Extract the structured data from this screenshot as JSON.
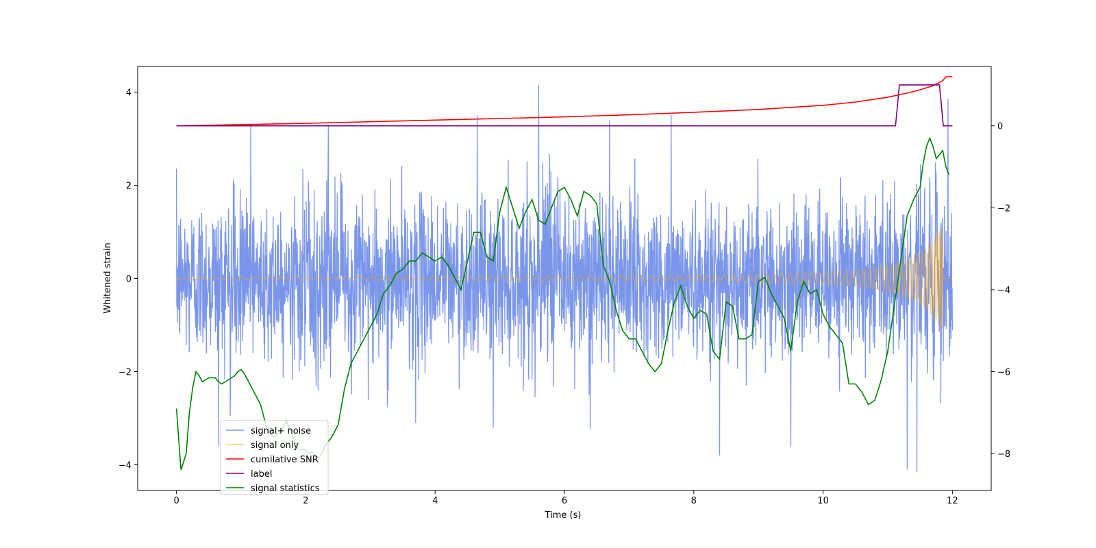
{
  "chart_data": {
    "type": "line",
    "title": "",
    "xlabel": "Time (s)",
    "ylabel": "Whitened strain",
    "y2label": "",
    "xlim": [
      -0.6,
      12.6
    ],
    "ylim": [
      -4.55,
      4.55
    ],
    "y2lim": [
      -8.9,
      1.45
    ],
    "xticks": [
      0,
      2,
      4,
      6,
      8,
      10,
      12
    ],
    "xtick_labels": [
      "0",
      "2",
      "4",
      "6",
      "8",
      "10",
      "12"
    ],
    "yticks": [
      -4,
      -2,
      0,
      2,
      4
    ],
    "ytick_labels": [
      "−4",
      "−2",
      "0",
      "2",
      "4"
    ],
    "y2ticks": [
      -8,
      -6,
      -4,
      -2,
      0
    ],
    "y2tick_labels": [
      "−8",
      "−6",
      "−4",
      "−2",
      "0"
    ],
    "grid": false,
    "legend_location": "lower-left",
    "series": [
      {
        "name": "signal+ noise",
        "axis": "left",
        "color": "#4169e1",
        "opacity": 0.7,
        "kind": "noise",
        "t_start": 0,
        "t_end": 12,
        "std": 0.85,
        "envelope": "chirp",
        "spikes": [
          {
            "x": 5.6,
            "y": 4.15
          },
          {
            "x": 4.65,
            "y": 3.5
          },
          {
            "x": 1.15,
            "y": 3.3
          },
          {
            "x": 2.35,
            "y": 3.3
          },
          {
            "x": 6.7,
            "y": 3.4
          },
          {
            "x": 7.65,
            "y": 3.5
          },
          {
            "x": 11.93,
            "y": 3.85
          },
          {
            "x": 11.3,
            "y": -4.1
          },
          {
            "x": 11.45,
            "y": -4.15
          },
          {
            "x": 8.4,
            "y": -3.8
          },
          {
            "x": 0.65,
            "y": -3.6
          },
          {
            "x": 4.9,
            "y": -3.2
          },
          {
            "x": 6.4,
            "y": -3.25
          },
          {
            "x": 9.5,
            "y": -3.6
          },
          {
            "x": 3.7,
            "y": -3.1
          }
        ]
      },
      {
        "name": "signal only",
        "axis": "left",
        "color": "#ffa500",
        "opacity": 0.5,
        "kind": "chirp",
        "t_start": 0,
        "t_end": 12,
        "merger_time": 11.85,
        "amplitude_at": [
          [
            0,
            0.03
          ],
          [
            6,
            0.05
          ],
          [
            9,
            0.09
          ],
          [
            10.5,
            0.17
          ],
          [
            11.2,
            0.35
          ],
          [
            11.6,
            0.65
          ],
          [
            11.82,
            1.1
          ]
        ]
      },
      {
        "name": "cumilative SNR",
        "axis": "right",
        "color": "#ff0000",
        "x": [
          0,
          1,
          2,
          3,
          4,
          5,
          6,
          7,
          8,
          9,
          9.5,
          10,
          10.5,
          11,
          11.3,
          11.5,
          11.7,
          11.85,
          11.9,
          12
        ],
        "y": [
          0,
          0.03,
          0.06,
          0.1,
          0.14,
          0.18,
          0.22,
          0.27,
          0.33,
          0.4,
          0.45,
          0.5,
          0.58,
          0.7,
          0.8,
          0.88,
          0.98,
          1.1,
          1.2,
          1.2
        ]
      },
      {
        "name": "label",
        "axis": "right",
        "color": "#800080",
        "x": [
          0,
          11.12,
          11.18,
          11.8,
          11.86,
          12
        ],
        "y": [
          0,
          0,
          1.0,
          1.0,
          0,
          0
        ]
      },
      {
        "name": "signal statistics",
        "axis": "right",
        "color": "#008000",
        "x": [
          0,
          0.07,
          0.15,
          0.2,
          0.25,
          0.3,
          0.35,
          0.4,
          0.5,
          0.6,
          0.65,
          0.7,
          0.8,
          0.9,
          0.95,
          1.0,
          1.05,
          1.1,
          1.2,
          1.3,
          1.4,
          1.5,
          1.6,
          1.7,
          1.8,
          1.9,
          2.0,
          2.05,
          2.1,
          2.15,
          2.2,
          2.25,
          2.3,
          2.4,
          2.5,
          2.6,
          2.7,
          2.8,
          2.9,
          3.0,
          3.1,
          3.2,
          3.3,
          3.4,
          3.5,
          3.6,
          3.7,
          3.8,
          3.9,
          4.0,
          4.1,
          4.2,
          4.3,
          4.4,
          4.5,
          4.6,
          4.7,
          4.8,
          4.9,
          5.0,
          5.1,
          5.2,
          5.3,
          5.4,
          5.5,
          5.6,
          5.7,
          5.8,
          5.9,
          6.0,
          6.1,
          6.2,
          6.3,
          6.4,
          6.5,
          6.6,
          6.7,
          6.8,
          6.9,
          7.0,
          7.1,
          7.2,
          7.3,
          7.4,
          7.5,
          7.6,
          7.7,
          7.8,
          7.9,
          8.0,
          8.1,
          8.2,
          8.3,
          8.4,
          8.5,
          8.6,
          8.7,
          8.8,
          8.9,
          9.0,
          9.1,
          9.2,
          9.3,
          9.4,
          9.5,
          9.6,
          9.7,
          9.8,
          9.9,
          10.0,
          10.1,
          10.2,
          10.3,
          10.4,
          10.5,
          10.6,
          10.7,
          10.8,
          10.9,
          11.0,
          11.1,
          11.2,
          11.3,
          11.4,
          11.5,
          11.55,
          11.6,
          11.65,
          11.7,
          11.75,
          11.8,
          11.85,
          11.9,
          11.95
        ],
        "y": [
          -6.9,
          -8.4,
          -8.0,
          -7.0,
          -6.4,
          -6.0,
          -6.1,
          -6.25,
          -6.15,
          -6.15,
          -6.25,
          -6.3,
          -6.2,
          -6.1,
          -6.0,
          -5.95,
          -6.05,
          -6.2,
          -6.5,
          -6.8,
          -7.4,
          -7.6,
          -7.5,
          -7.2,
          -7.6,
          -7.9,
          -7.9,
          -8.0,
          -7.95,
          -8.05,
          -8.1,
          -8.0,
          -7.8,
          -7.6,
          -7.3,
          -6.4,
          -5.8,
          -5.5,
          -5.2,
          -4.9,
          -4.6,
          -4.1,
          -3.9,
          -3.6,
          -3.5,
          -3.3,
          -3.3,
          -3.1,
          -3.2,
          -3.3,
          -3.2,
          -3.4,
          -3.7,
          -4.0,
          -3.3,
          -2.6,
          -2.6,
          -3.2,
          -3.3,
          -2.1,
          -1.5,
          -2.0,
          -2.5,
          -2.1,
          -1.8,
          -2.3,
          -2.4,
          -2.0,
          -1.6,
          -1.5,
          -1.8,
          -2.2,
          -1.6,
          -1.7,
          -1.9,
          -3.4,
          -3.8,
          -4.5,
          -5.0,
          -5.2,
          -5.2,
          -5.5,
          -5.8,
          -6.0,
          -5.8,
          -5.0,
          -4.3,
          -3.9,
          -4.4,
          -4.7,
          -4.5,
          -4.6,
          -5.5,
          -5.7,
          -4.3,
          -4.4,
          -5.2,
          -5.2,
          -5.1,
          -3.8,
          -3.7,
          -4.1,
          -4.4,
          -4.7,
          -5.5,
          -4.3,
          -3.8,
          -4.1,
          -4.0,
          -4.6,
          -4.9,
          -5.1,
          -5.3,
          -6.3,
          -6.3,
          -6.5,
          -6.8,
          -6.7,
          -6.2,
          -5.5,
          -4.4,
          -3.3,
          -2.2,
          -1.8,
          -1.5,
          -0.9,
          -0.5,
          -0.3,
          -0.5,
          -0.8,
          -0.7,
          -0.6,
          -1.0,
          -1.2
        ]
      }
    ]
  }
}
